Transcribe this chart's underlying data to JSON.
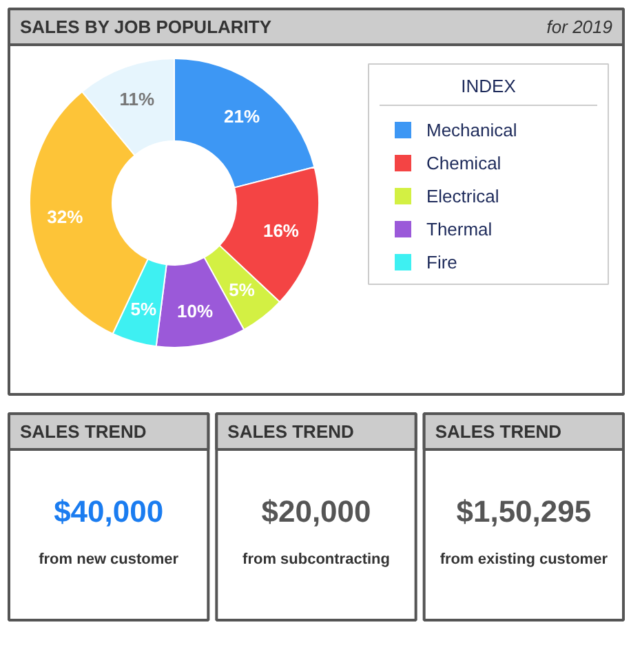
{
  "chart_data": [
    {
      "type": "donut",
      "title": "SALES BY JOB POPULARITY",
      "subtitle": "for 2019",
      "legend_title": "INDEX",
      "legend": "right",
      "categories": [
        "Mechanical",
        "Chemical",
        "Electrical",
        "Thermal",
        "Fire",
        null,
        null
      ],
      "values": [
        21,
        16,
        5,
        10,
        5,
        32,
        11
      ],
      "colors": [
        "#3d97f4",
        "#f44444",
        "#d3f043",
        "#9b59d9",
        "#3ef0f2",
        "#fdc438",
        "#e6f5fd"
      ],
      "value_labels": [
        "21%",
        "16%",
        "5%",
        "10%",
        "5%",
        "32%",
        "11%"
      ]
    },
    {
      "type": "other",
      "title": "SALES TREND",
      "color": "#1a7cf0",
      "annotations": [
        "$40,000",
        "from new customer"
      ]
    },
    {
      "type": "other",
      "title": "SALES TREND",
      "color": "#555555",
      "annotations": [
        "$20,000",
        "from subcontracting"
      ]
    },
    {
      "type": "other",
      "title": "SALES TREND",
      "color": "#555555",
      "annotations": [
        "$1,50,295",
        "from existing customer"
      ]
    }
  ]
}
